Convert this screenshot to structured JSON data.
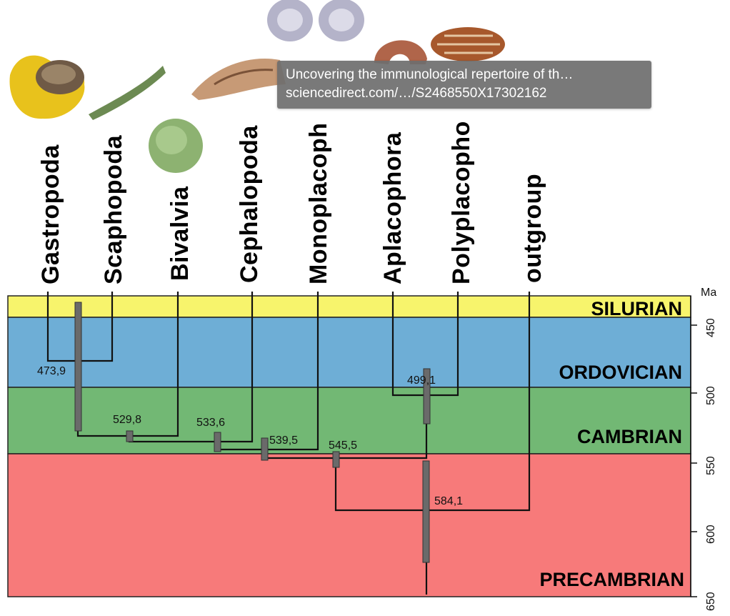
{
  "time_unit": "Ma",
  "periods": [
    {
      "name": "SILURIAN",
      "color": "#f7f46c"
    },
    {
      "name": "ORDOVICIAN",
      "color": "#6eaed6"
    },
    {
      "name": "CAMBRIAN",
      "color": "#72b874"
    },
    {
      "name": "PRECAMBRIAN",
      "color": "#f77a7a"
    }
  ],
  "taxa": [
    "Gastropoda",
    "Scaphopoda",
    "Bivalvia",
    "Cephalopoda",
    "Monoplacoph",
    "Aplacophora",
    "Polyplacopho",
    "outgroup"
  ],
  "axis_ticks": [
    "450",
    "500",
    "550",
    "600",
    "650"
  ],
  "node_ages": [
    "473,9",
    "529,8",
    "533,6",
    "539,5",
    "545,5",
    "499,1",
    "584,1"
  ],
  "tooltip": {
    "line1": "Uncovering the immunological repertoire of th…",
    "line2": "sciencedirect.com/…/S2468550X17302162"
  },
  "icons": [
    "mollusc-shell-icon"
  ]
}
